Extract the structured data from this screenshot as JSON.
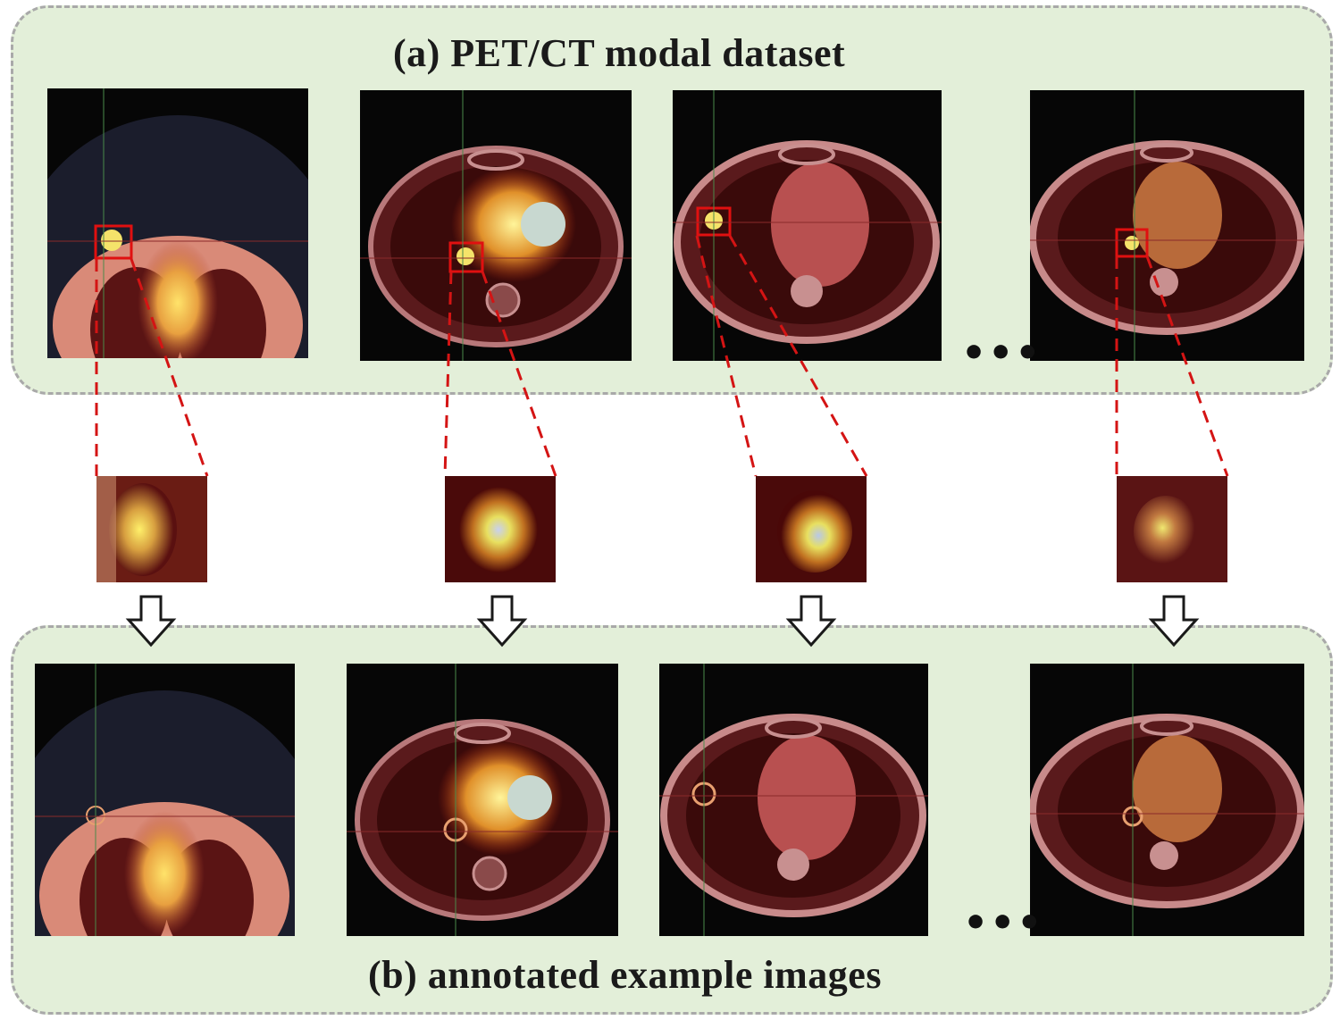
{
  "panels": {
    "dataset": {
      "title": "(a) PET/CT modal dataset"
    },
    "annotated": {
      "title": "(b) annotated example images"
    }
  },
  "ellipsis": "•••",
  "colors": {
    "panel_background": "#e3efd9",
    "panel_border": "#a9a9a9",
    "lesion_box": "#e01010",
    "connector_line": "#d41414"
  },
  "icons": {
    "down_arrow": "outlined-down-arrow-icon"
  }
}
